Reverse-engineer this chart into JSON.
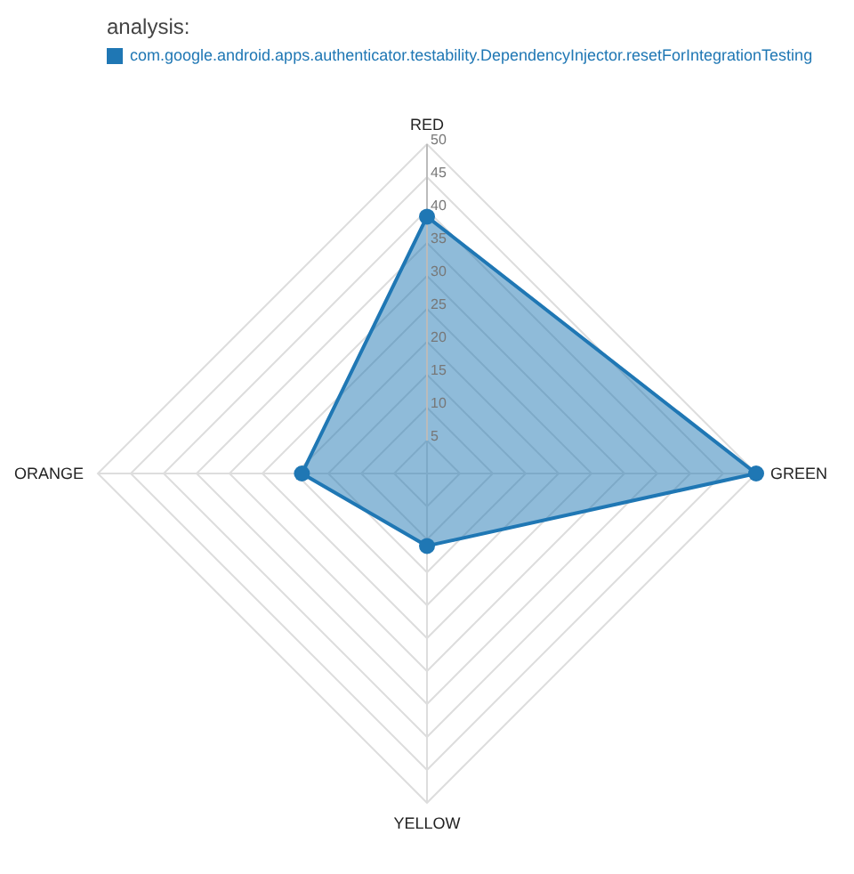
{
  "chart_data": {
    "type": "radar",
    "title": "analysis:",
    "categories": [
      "RED",
      "GREEN",
      "YELLOW",
      "ORANGE"
    ],
    "series": [
      {
        "name": "com.google.android.apps.authenticator.testability.DependencyInjector.resetForIntegrationTesting",
        "color": "#1f77b4",
        "values": [
          39,
          50,
          11,
          19
        ]
      }
    ],
    "ylim": [
      0,
      50
    ],
    "yticks": [
      5,
      10,
      15,
      20,
      25,
      30,
      35,
      40,
      45,
      50
    ],
    "grid": true,
    "legend": "top left",
    "marker": "circle"
  }
}
